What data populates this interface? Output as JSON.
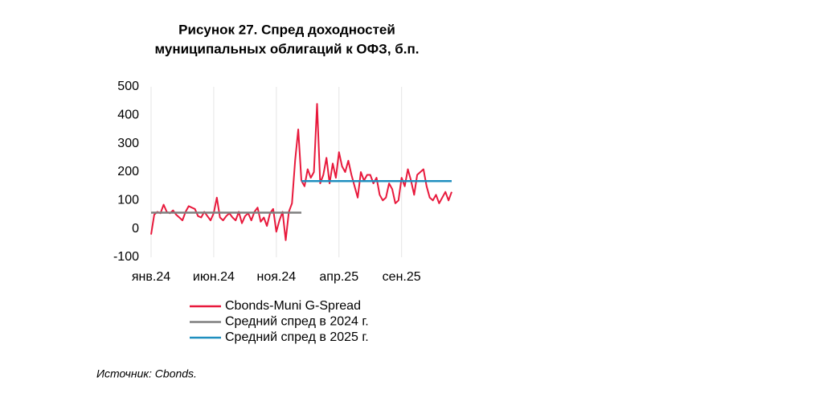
{
  "chart_data": {
    "type": "line",
    "title": [
      "Рисунок 27. Спред доходностей",
      "муниципальных облигаций к ОФЗ, б.п."
    ],
    "source": "Источник: Cbonds.",
    "xlim": [
      0,
      24
    ],
    "xticks": [
      {
        "value": 0,
        "label": "янв.24"
      },
      {
        "value": 5,
        "label": "июн.24"
      },
      {
        "value": 10,
        "label": "ноя.24"
      },
      {
        "value": 15,
        "label": "апр.25"
      },
      {
        "value": 20,
        "label": "сен.25"
      }
    ],
    "ylim": [
      -100,
      500
    ],
    "yticks": [
      -100,
      0,
      100,
      200,
      300,
      400,
      500
    ],
    "grid": "x",
    "series": [
      {
        "name": "Cbonds-Muni G-Spread",
        "color": "#e8193c",
        "x": [
          0,
          0.25,
          0.5,
          0.75,
          1,
          1.25,
          1.5,
          1.75,
          2,
          2.25,
          2.5,
          2.75,
          3,
          3.25,
          3.5,
          3.75,
          4,
          4.25,
          4.5,
          4.75,
          5,
          5.25,
          5.5,
          5.75,
          6,
          6.25,
          6.5,
          6.75,
          7,
          7.25,
          7.5,
          7.75,
          8,
          8.25,
          8.5,
          8.75,
          9,
          9.25,
          9.5,
          9.75,
          10,
          10.25,
          10.5,
          10.75,
          11,
          11.25,
          11.5,
          11.75,
          12,
          12.25,
          12.5,
          12.75,
          13,
          13.25,
          13.5,
          13.75,
          14,
          14.25,
          14.5,
          14.75,
          15,
          15.25,
          15.5,
          15.75,
          16,
          16.25,
          16.5,
          16.75,
          17,
          17.25,
          17.5,
          17.75,
          18,
          18.25,
          18.5,
          18.75,
          19,
          19.25,
          19.5,
          19.75,
          20,
          20.25,
          20.5,
          20.75,
          21,
          21.25,
          21.5,
          21.75,
          22,
          22.25,
          22.5,
          22.75,
          23,
          23.25,
          23.5,
          23.75,
          24
        ],
        "values": [
          -20,
          50,
          60,
          55,
          85,
          60,
          55,
          65,
          50,
          40,
          30,
          60,
          80,
          75,
          70,
          45,
          40,
          60,
          45,
          30,
          55,
          110,
          40,
          30,
          45,
          55,
          40,
          30,
          60,
          20,
          45,
          55,
          30,
          60,
          75,
          25,
          40,
          10,
          55,
          70,
          -10,
          30,
          60,
          -40,
          60,
          90,
          240,
          350,
          170,
          150,
          210,
          180,
          200,
          440,
          160,
          190,
          250,
          160,
          230,
          180,
          270,
          220,
          200,
          240,
          190,
          150,
          110,
          200,
          170,
          190,
          190,
          160,
          180,
          120,
          100,
          110,
          160,
          140,
          90,
          100,
          180,
          150,
          210,
          170,
          120,
          190,
          200,
          210,
          150,
          110,
          100,
          120,
          90,
          110,
          130,
          100,
          130
        ]
      },
      {
        "name": "Средний спред в 2024 г.",
        "color": "#7f7f7f",
        "x": [
          0,
          12
        ],
        "values": [
          57,
          57
        ]
      },
      {
        "name": "Средний спред в 2025 г.",
        "color": "#1f8fbf",
        "x": [
          12,
          24
        ],
        "values": [
          168,
          168
        ]
      }
    ]
  }
}
